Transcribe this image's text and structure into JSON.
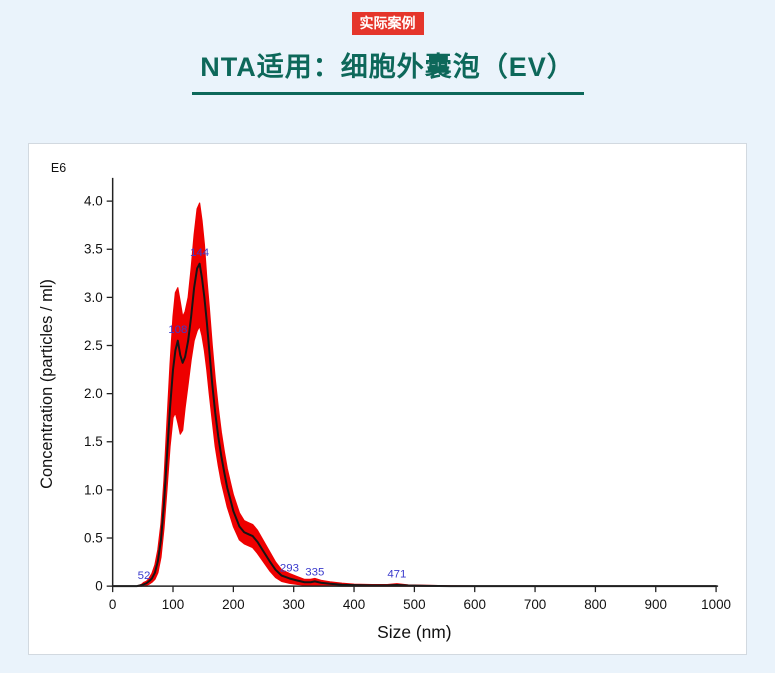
{
  "page": {
    "badge": "实际案例",
    "title": "NTA适用：细胞外囊泡（EV）"
  },
  "colors": {
    "page_bg": "#eaf3fb",
    "badge_bg": "#e5352b",
    "badge_text": "#ffffff",
    "title_text": "#0d685a",
    "underline": "#0d685a",
    "band_fill": "#ee0000",
    "mean_line": "#151515",
    "peak_label": "#3b3bcc",
    "axis": "#222222"
  },
  "chart_data": {
    "type": "area",
    "title": "",
    "xlabel": "Size (nm)",
    "ylabel": "Concentration (particles / ml)",
    "exponent_label": "E6",
    "xlim": [
      0,
      1000
    ],
    "ylim": [
      0,
      4.2
    ],
    "x_ticks": [
      0,
      100,
      200,
      300,
      400,
      500,
      600,
      700,
      800,
      900,
      1000
    ],
    "y_ticks": [
      0,
      0.5,
      1.0,
      1.5,
      2.0,
      2.5,
      3.0,
      3.5,
      4.0
    ],
    "grid": false,
    "legend": "none",
    "series_note": "points are [x_nm, mean, band_lower, band_upper] in E6 particles/ml",
    "points": [
      [
        0,
        0,
        0,
        0
      ],
      [
        40,
        0,
        0,
        0
      ],
      [
        48,
        0.01,
        0,
        0.02
      ],
      [
        52,
        0.02,
        0.01,
        0.04
      ],
      [
        56,
        0.03,
        0.01,
        0.05
      ],
      [
        60,
        0.05,
        0.02,
        0.08
      ],
      [
        65,
        0.08,
        0.04,
        0.13
      ],
      [
        70,
        0.14,
        0.07,
        0.22
      ],
      [
        75,
        0.26,
        0.14,
        0.38
      ],
      [
        80,
        0.48,
        0.3,
        0.65
      ],
      [
        85,
        0.85,
        0.6,
        1.1
      ],
      [
        90,
        1.35,
        1.0,
        1.7
      ],
      [
        95,
        1.85,
        1.45,
        2.3
      ],
      [
        100,
        2.25,
        1.75,
        2.8
      ],
      [
        104,
        2.45,
        1.8,
        3.05
      ],
      [
        108,
        2.55,
        1.7,
        3.1
      ],
      [
        112,
        2.4,
        1.58,
        2.95
      ],
      [
        116,
        2.32,
        1.62,
        2.8
      ],
      [
        120,
        2.38,
        1.85,
        2.85
      ],
      [
        125,
        2.55,
        2.1,
        3.0
      ],
      [
        130,
        2.8,
        2.35,
        3.3
      ],
      [
        135,
        3.1,
        2.55,
        3.65
      ],
      [
        140,
        3.3,
        2.65,
        3.92
      ],
      [
        144,
        3.35,
        2.7,
        3.98
      ],
      [
        148,
        3.2,
        2.6,
        3.8
      ],
      [
        152,
        3.0,
        2.45,
        3.55
      ],
      [
        156,
        2.75,
        2.25,
        3.2
      ],
      [
        160,
        2.45,
        2.0,
        2.9
      ],
      [
        165,
        2.1,
        1.72,
        2.5
      ],
      [
        170,
        1.8,
        1.45,
        2.15
      ],
      [
        175,
        1.55,
        1.25,
        1.85
      ],
      [
        180,
        1.35,
        1.08,
        1.6
      ],
      [
        185,
        1.18,
        0.95,
        1.4
      ],
      [
        190,
        1.02,
        0.82,
        1.22
      ],
      [
        195,
        0.9,
        0.72,
        1.08
      ],
      [
        200,
        0.78,
        0.62,
        0.95
      ],
      [
        210,
        0.62,
        0.48,
        0.76
      ],
      [
        218,
        0.56,
        0.44,
        0.68
      ],
      [
        225,
        0.54,
        0.42,
        0.66
      ],
      [
        232,
        0.52,
        0.4,
        0.64
      ],
      [
        240,
        0.46,
        0.34,
        0.58
      ],
      [
        250,
        0.36,
        0.25,
        0.47
      ],
      [
        260,
        0.26,
        0.16,
        0.36
      ],
      [
        270,
        0.17,
        0.09,
        0.25
      ],
      [
        280,
        0.11,
        0.05,
        0.17
      ],
      [
        293,
        0.08,
        0.03,
        0.13
      ],
      [
        305,
        0.06,
        0.02,
        0.1
      ],
      [
        318,
        0.04,
        0.01,
        0.07
      ],
      [
        328,
        0.04,
        0.01,
        0.07
      ],
      [
        335,
        0.05,
        0.015,
        0.08
      ],
      [
        345,
        0.035,
        0.01,
        0.06
      ],
      [
        360,
        0.025,
        0.005,
        0.045
      ],
      [
        380,
        0.015,
        0,
        0.03
      ],
      [
        400,
        0.01,
        0,
        0.02
      ],
      [
        430,
        0.008,
        0,
        0.016
      ],
      [
        455,
        0.008,
        0,
        0.016
      ],
      [
        471,
        0.012,
        0,
        0.025
      ],
      [
        490,
        0.006,
        0,
        0.012
      ],
      [
        520,
        0.003,
        0,
        0.008
      ],
      [
        560,
        0,
        0,
        0.003
      ],
      [
        600,
        0,
        0,
        0
      ],
      [
        700,
        0,
        0,
        0
      ],
      [
        800,
        0,
        0,
        0
      ],
      [
        900,
        0,
        0,
        0
      ],
      [
        1000,
        0,
        0,
        0
      ]
    ],
    "peak_labels": [
      {
        "x": 52,
        "y": 0.02,
        "label": "52"
      },
      {
        "x": 108,
        "y": 2.58,
        "label": "108"
      },
      {
        "x": 144,
        "y": 3.38,
        "label": "144"
      },
      {
        "x": 293,
        "y": 0.1,
        "label": "293"
      },
      {
        "x": 335,
        "y": 0.06,
        "label": "335"
      },
      {
        "x": 471,
        "y": 0.04,
        "label": "471"
      }
    ]
  }
}
